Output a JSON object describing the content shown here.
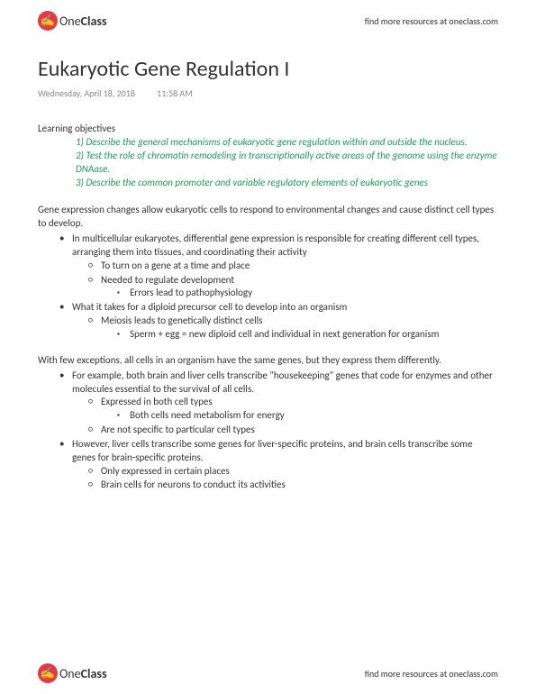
{
  "brand": {
    "one": "One",
    "class": "Class",
    "icon": "✍"
  },
  "header_link": "find more resources at oneclass.com",
  "title": "Eukaryotic Gene Regulation I",
  "date": "Wednesday, April 18, 2018",
  "time": "11:58 AM",
  "objectives_label": "Learning objectives",
  "objectives": [
    "1) Describe the general mechanisms of eukaryotic gene regulation within and outside the nucleus.",
    "2) Test the role of chromatin remodeling in transcriptionally active areas of the genome using the enzyme DNAase.",
    "3) Describe the common promoter and variable regulatory elements of eukaryotic genes"
  ],
  "para1": "Gene expression changes allow eukaryotic cells to respond to environmental changes and cause distinct cell types to develop.",
  "b1": {
    "l1": "In multicellular eukaryotes, differential gene expression is responsible for creating different cell types, arranging them into tissues, and coordinating their activity",
    "s1": "To turn on a gene at a time and place",
    "s2": "Needed to regulate development",
    "ss1": "Errors lead to pathophysiology",
    "l2": "What it takes for a diploid precursor cell to develop into an organism",
    "s3": "Meiosis leads to genetically distinct cells",
    "ss2": "Sperm + egg = new diploid cell and individual in next generation for organism"
  },
  "para2": "With few exceptions, all cells in an organism have the same genes, but they express them differently.",
  "b2": {
    "l1": "For example, both brain and liver cells transcribe \"housekeeping\" genes that code for enzymes and other molecules essential to the survival of all cells.",
    "s1": "Expressed in both cell types",
    "ss1": "Both cells need metabolism for energy",
    "s2": "Are not specific to particular cell types",
    "l2": "However, liver cells transcribe some genes for liver-specific proteins, and brain cells transcribe some genes for brain-specific proteins.",
    "s3": "Only expressed in certain places",
    "s4": "Brain cells for neurons to conduct its activities"
  },
  "colors": {
    "accent": "#1a9b5e",
    "logo_bg": "#e63946",
    "text": "#333333",
    "meta": "#888888"
  }
}
